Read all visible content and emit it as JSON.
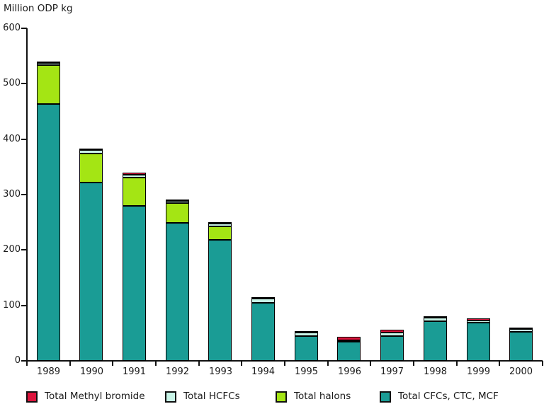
{
  "chart_data": {
    "type": "bar",
    "stacked": true,
    "title": "Million ODP kg",
    "xlabel": "",
    "ylabel": "Million ODP kg",
    "ylim": [
      0,
      600
    ],
    "yticks": [
      0,
      100,
      200,
      300,
      400,
      500,
      600
    ],
    "grid": false,
    "legend_position": "bottom",
    "categories": [
      "1989",
      "1990",
      "1991",
      "1992",
      "1993",
      "1994",
      "1995",
      "1996",
      "1997",
      "1998",
      "1999",
      "2000"
    ],
    "series": [
      {
        "name": "Total CFCs, CTC, MCF",
        "color": "#1A9C95",
        "values": [
          463,
          322,
          279,
          249,
          218,
          105,
          45,
          34,
          45,
          72,
          69,
          52
        ]
      },
      {
        "name": "Total halons",
        "color": "#A4E514",
        "values": [
          70,
          52,
          52,
          36,
          24,
          0,
          0,
          0,
          0,
          0,
          0,
          0
        ]
      },
      {
        "name": "Total HCFCs",
        "color": "#C8F4E7",
        "values": [
          5,
          6,
          5,
          4,
          6,
          7,
          6,
          3,
          6,
          6,
          4,
          6
        ]
      },
      {
        "name": "Total Methyl bromide",
        "color": "#DC143C",
        "values": [
          1,
          1,
          4,
          1,
          1,
          1,
          3,
          6,
          5,
          2,
          4,
          1
        ]
      }
    ],
    "legend": [
      {
        "label": "Total Methyl bromide",
        "color": "#DC143C"
      },
      {
        "label": "Total HCFCs",
        "color": "#C8F4E7"
      },
      {
        "label": "Total halons",
        "color": "#A4E514"
      },
      {
        "label": "Total CFCs, CTC, MCF",
        "color": "#1A9C95"
      }
    ],
    "colors": {
      "axis": "#111111",
      "bar_border": "#000000",
      "text": "#1a1a1a",
      "background": "#ffffff"
    }
  }
}
